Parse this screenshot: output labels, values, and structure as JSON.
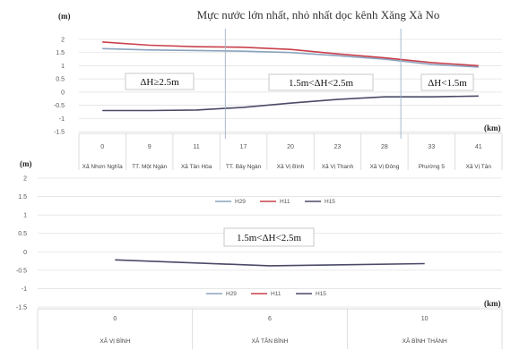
{
  "chart_data": [
    {
      "type": "line",
      "title": "Mực nước lớn nhất, nhỏ nhất dọc kênh Xăng Xà No",
      "ylabel": "(m)",
      "xlabel": "(km)",
      "ylim": [
        -1.5,
        2
      ],
      "yticks": [
        "2",
        "1.5",
        "1",
        "0.5",
        "0",
        "-0.5",
        "-1",
        "-1.5"
      ],
      "x": [
        "0",
        "9",
        "11",
        "17",
        "20",
        "23",
        "28",
        "33",
        "41"
      ],
      "categories": [
        "Xã Nhơn Nghĩa",
        "TT. Một Ngàn",
        "Xã Tân Hòa",
        "TT. Bảy Ngàn",
        "Xã Vị Bình",
        "Xã Vị Thanh",
        "Xã Vị Đông",
        "Phường 5",
        "Xã Vị Tân"
      ],
      "series": [
        {
          "name": "H29",
          "color": "#8aa3bf",
          "values": [
            1.65,
            1.6,
            1.58,
            1.55,
            1.5,
            1.38,
            1.25,
            1.05,
            0.95
          ]
        },
        {
          "name": "H11",
          "color": "#c8404c",
          "values": [
            1.9,
            1.78,
            1.72,
            1.7,
            1.62,
            1.45,
            1.3,
            1.12,
            1.0
          ]
        },
        {
          "name": "H15",
          "color": "#4a4a68",
          "values": [
            -0.7,
            -0.7,
            -0.68,
            -0.58,
            -0.42,
            -0.28,
            -0.18,
            -0.18,
            -0.15
          ]
        }
      ],
      "annotations": [
        "ΔH≥2.5m",
        "1.5m<ΔH<2.5m",
        "ΔH<1.5m"
      ],
      "grid": "horizontal"
    },
    {
      "type": "line",
      "ylabel": "(m)",
      "xlabel": "(km)",
      "ylim": [
        -1.5,
        2
      ],
      "yticks": [
        "2",
        "1.5",
        "1",
        "0.5",
        "0",
        "-0.5",
        "-1",
        "-1.5"
      ],
      "x": [
        "0",
        "6",
        "10"
      ],
      "categories": [
        "XÃ VỊ BÌNH",
        "XÃ TÂN BÌNH",
        "XÃ BÌNH THÀNH"
      ],
      "series": [
        {
          "name": "H29",
          "color": "#8aa3bf",
          "values": [
            null,
            null,
            null
          ]
        },
        {
          "name": "H11",
          "color": "#c8404c",
          "values": [
            null,
            null,
            null
          ]
        },
        {
          "name": "H15",
          "color": "#4a4a68",
          "values": [
            -0.22,
            -0.38,
            -0.32
          ]
        }
      ],
      "annotations": [
        "1.5m<ΔH<2.5m"
      ],
      "grid": "horizontal"
    }
  ]
}
